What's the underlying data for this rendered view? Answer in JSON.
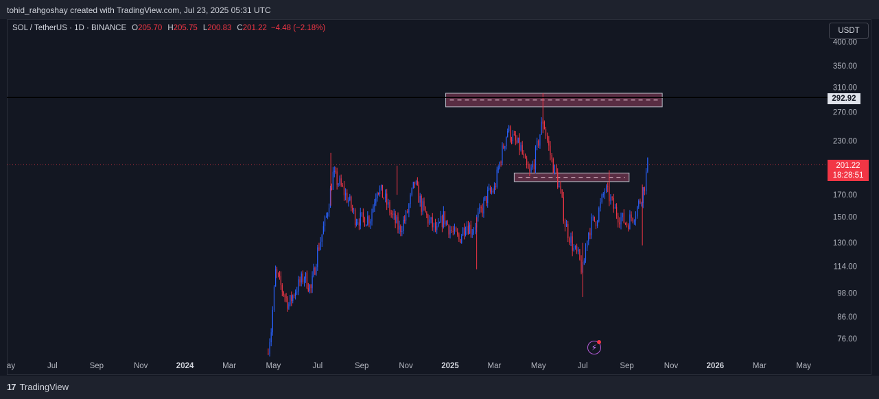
{
  "header": {
    "attribution": "tohid_rahgoshay created with TradingView.com, Jul 23, 2025 05:31 UTC"
  },
  "legend": {
    "symbol": "SOL / TetherUS · 1D · BINANCE",
    "o_label": "O",
    "o_value": "205.70",
    "h_label": "H",
    "h_value": "205.75",
    "l_label": "L",
    "l_value": "200.83",
    "c_label": "C",
    "c_value": "201.22",
    "change": "−4.48 (−2.18%)"
  },
  "currency_button": "USDT",
  "price_tags": {
    "resistance_line": "292.92",
    "last_price": "201.22",
    "countdown": "18:28:51"
  },
  "footer": {
    "brand": "TradingView"
  },
  "colors": {
    "up": "#2962ff",
    "down": "#f23645",
    "zone_fill": "#5d2f45",
    "background": "#131722"
  },
  "chart_data": {
    "type": "candlestick",
    "title": "SOL / TetherUS · 1D · BINANCE",
    "scale": "log",
    "ylim": [
      70,
      420
    ],
    "y_ticks": [
      "76.00",
      "86.00",
      "98.00",
      "114.00",
      "130.00",
      "150.00",
      "170.00",
      "230.00",
      "270.00",
      "310.00",
      "350.00",
      "400.00"
    ],
    "x_ticks": [
      {
        "label": "ay",
        "bold": false
      },
      {
        "label": "Jul",
        "bold": false
      },
      {
        "label": "Sep",
        "bold": false
      },
      {
        "label": "Nov",
        "bold": false
      },
      {
        "label": "2024",
        "bold": true
      },
      {
        "label": "Mar",
        "bold": false
      },
      {
        "label": "May",
        "bold": false
      },
      {
        "label": "Jul",
        "bold": false
      },
      {
        "label": "Sep",
        "bold": false
      },
      {
        "label": "Nov",
        "bold": false
      },
      {
        "label": "2025",
        "bold": true
      },
      {
        "label": "Mar",
        "bold": false
      },
      {
        "label": "May",
        "bold": false
      },
      {
        "label": "Jul",
        "bold": false
      },
      {
        "label": "Sep",
        "bold": false
      },
      {
        "label": "Nov",
        "bold": false
      },
      {
        "label": "2026",
        "bold": true
      },
      {
        "label": "Mar",
        "bold": false
      },
      {
        "label": "May",
        "bold": false
      }
    ],
    "horizontal_line": 292.92,
    "last_price": 201.22,
    "zones": [
      {
        "name": "upper-resistance-zone",
        "low": 278,
        "high": 300,
        "from_month": 19.8,
        "to_month": 29.6
      },
      {
        "name": "mid-resistance-zone",
        "low": 183,
        "high": 192,
        "from_month": 22.9,
        "to_month": 28.1
      }
    ],
    "path_monthly_closes": [
      [
        11.7,
        70
      ],
      [
        11.9,
        80
      ],
      [
        12.1,
        110
      ],
      [
        12.4,
        100
      ],
      [
        12.7,
        92
      ],
      [
        13.0,
        100
      ],
      [
        13.4,
        108
      ],
      [
        13.7,
        100
      ],
      [
        14.0,
        124
      ],
      [
        14.4,
        150
      ],
      [
        14.7,
        190
      ],
      [
        15.0,
        180
      ],
      [
        15.4,
        165
      ],
      [
        15.7,
        150
      ],
      [
        16.0,
        148
      ],
      [
        16.4,
        150
      ],
      [
        16.7,
        178
      ],
      [
        17.0,
        168
      ],
      [
        17.4,
        150
      ],
      [
        17.7,
        140
      ],
      [
        18.0,
        150
      ],
      [
        18.4,
        182
      ],
      [
        18.7,
        160
      ],
      [
        19.0,
        148
      ],
      [
        19.4,
        138
      ],
      [
        19.7,
        150
      ],
      [
        20.0,
        140
      ],
      [
        20.4,
        132
      ],
      [
        20.7,
        145
      ],
      [
        21.0,
        140
      ],
      [
        21.4,
        155
      ],
      [
        21.7,
        170
      ],
      [
        22.0,
        175
      ],
      [
        22.3,
        210
      ],
      [
        22.6,
        245
      ],
      [
        22.9,
        230
      ],
      [
        23.2,
        220
      ],
      [
        23.4,
        200
      ],
      [
        23.6,
        190
      ],
      [
        23.8,
        205
      ],
      [
        24.0,
        230
      ],
      [
        24.2,
        260
      ],
      [
        24.4,
        230
      ],
      [
        24.6,
        205
      ],
      [
        24.8,
        190
      ],
      [
        25.0,
        170
      ],
      [
        25.2,
        145
      ],
      [
        25.4,
        135
      ],
      [
        25.6,
        125
      ],
      [
        25.8,
        120
      ],
      [
        26.0,
        110
      ],
      [
        26.2,
        135
      ],
      [
        26.4,
        145
      ],
      [
        26.6,
        148
      ],
      [
        26.8,
        160
      ],
      [
        27.0,
        175
      ],
      [
        27.2,
        168
      ],
      [
        27.4,
        158
      ],
      [
        27.6,
        152
      ],
      [
        27.8,
        148
      ],
      [
        28.0,
        145
      ],
      [
        28.2,
        150
      ],
      [
        28.4,
        155
      ],
      [
        28.6,
        165
      ],
      [
        28.8,
        180
      ],
      [
        28.94,
        201.22
      ]
    ]
  }
}
